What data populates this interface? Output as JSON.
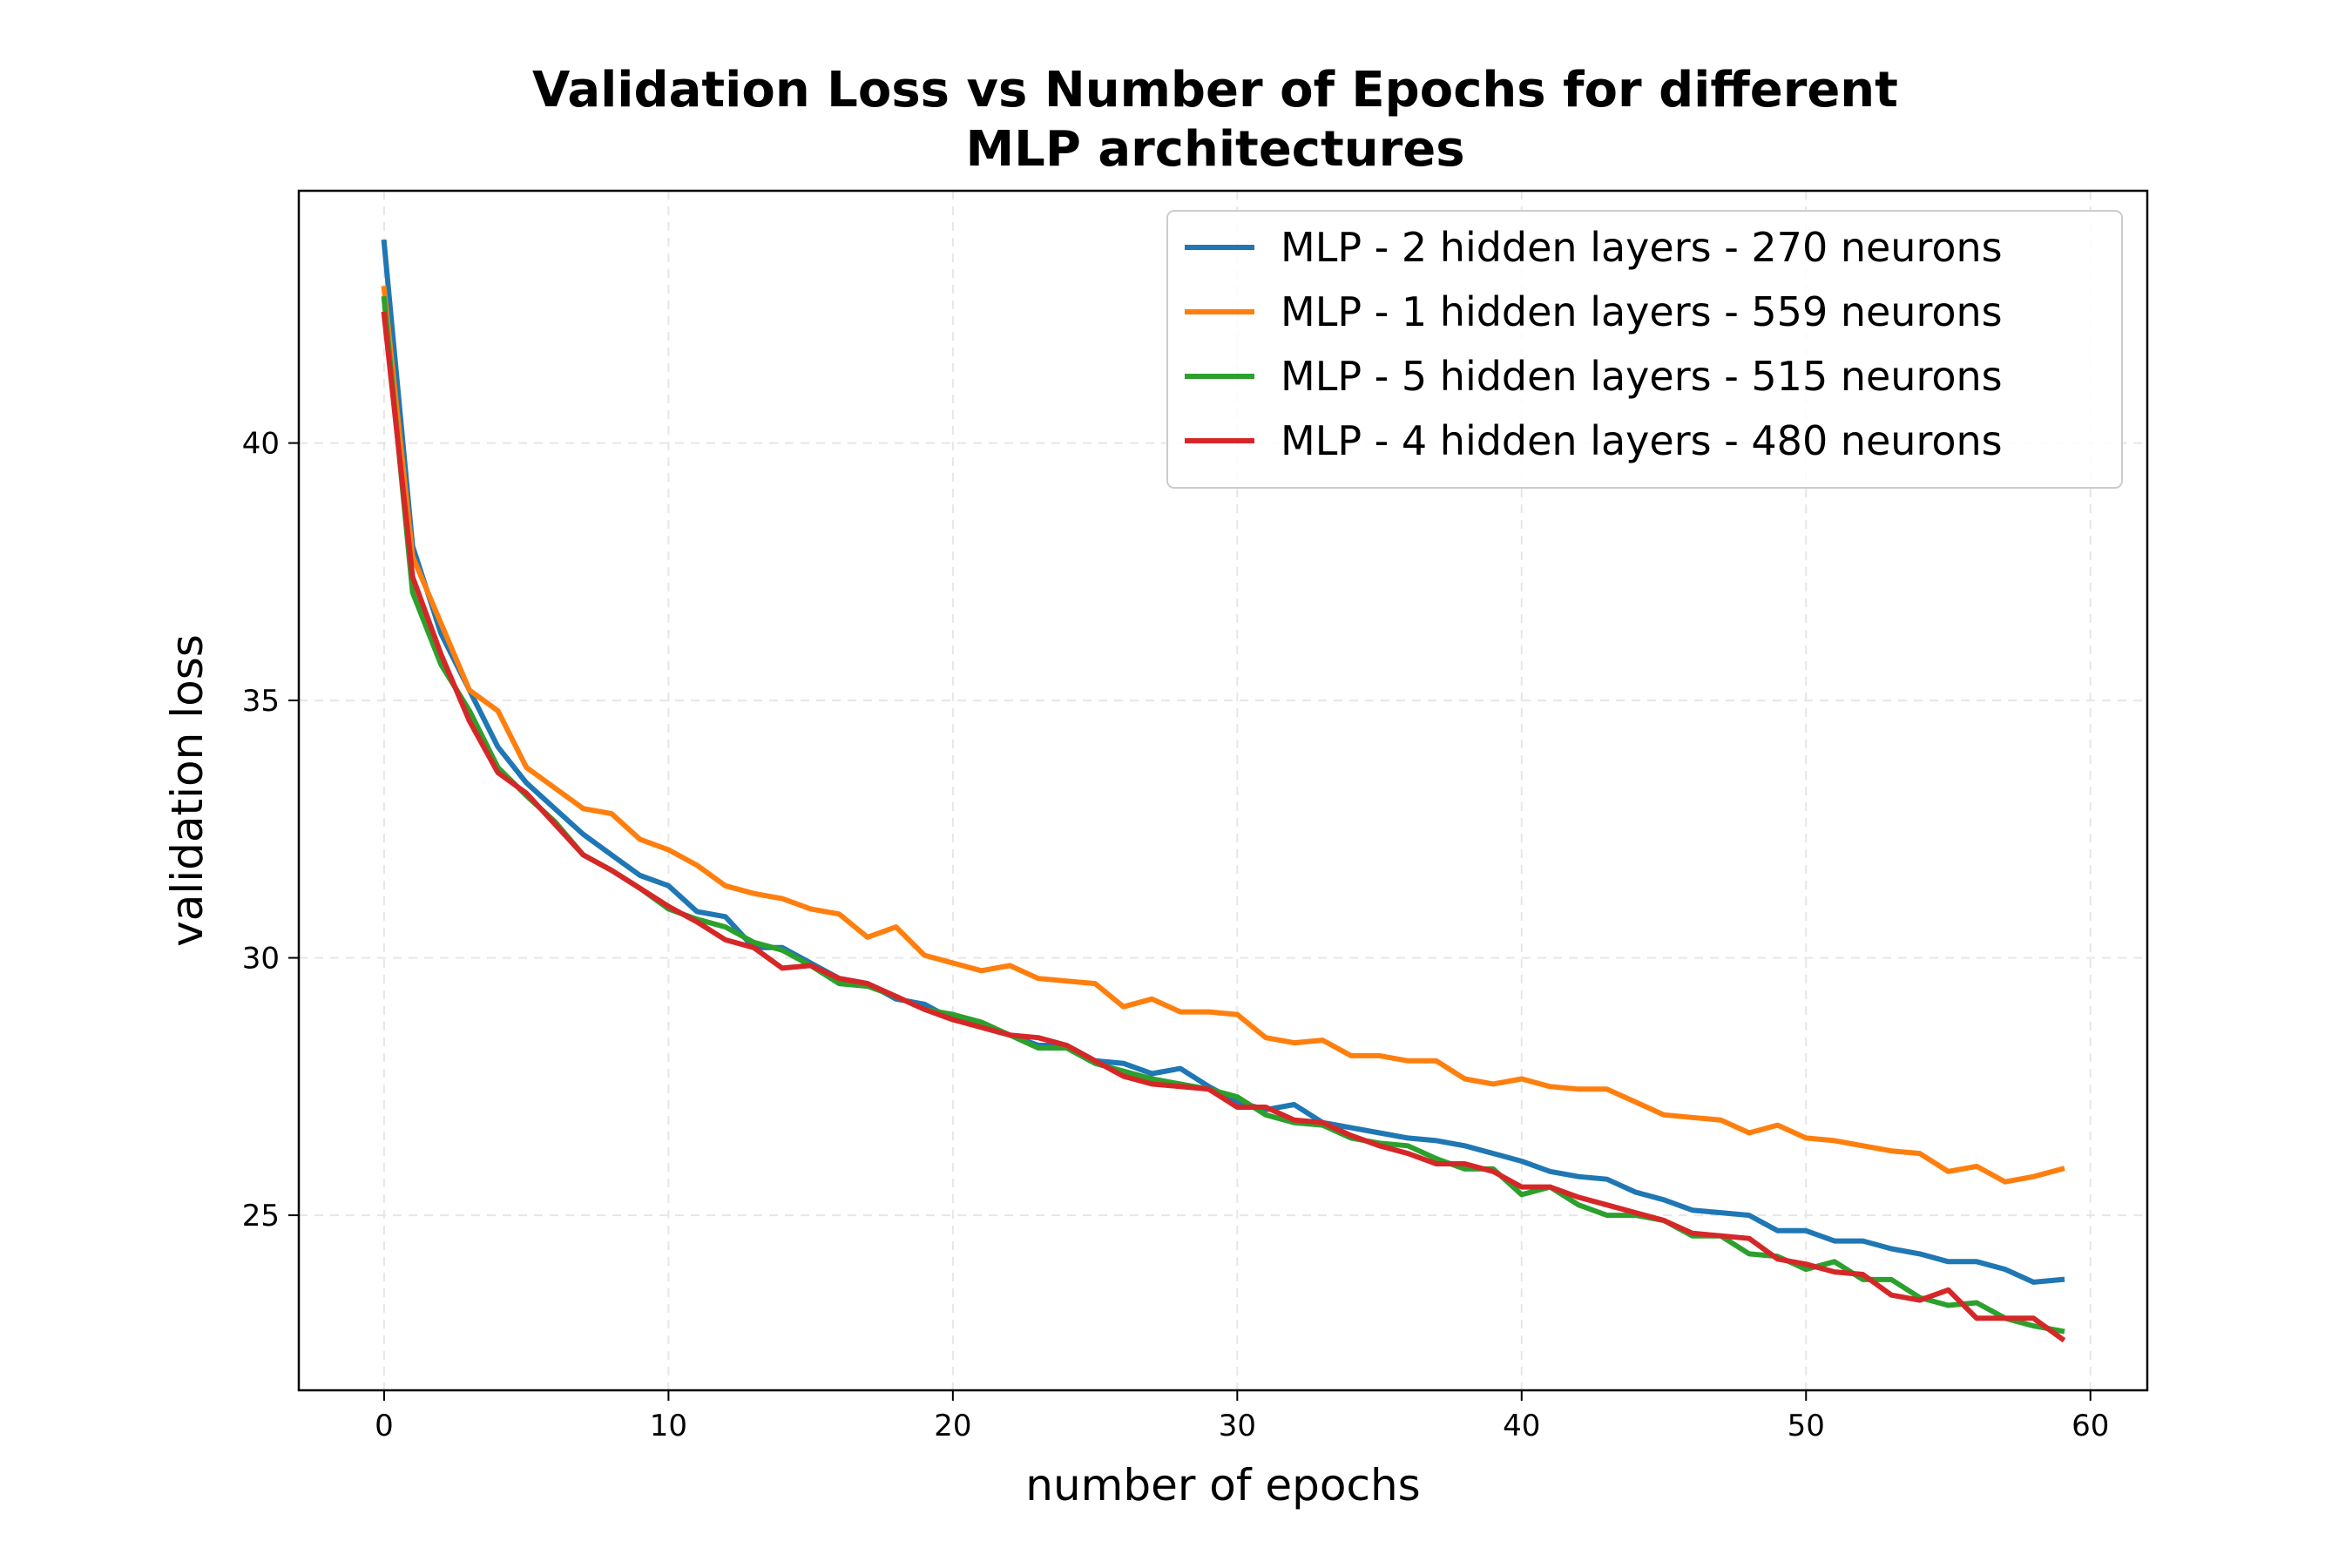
{
  "chart_data": {
    "type": "line",
    "title_lines": [
      "Validation Loss vs Number of Epochs for different",
      "MLP architectures"
    ],
    "xlabel": "number of epochs",
    "ylabel": "validation loss",
    "xlim": [
      -3,
      62
    ],
    "ylim": [
      21.6,
      44.9
    ],
    "xticks": [
      0,
      10,
      20,
      30,
      40,
      50,
      60
    ],
    "yticks": [
      25,
      30,
      35,
      40
    ],
    "grid": true,
    "legend_position": "top-right",
    "x": [
      0,
      1,
      2,
      3,
      4,
      5,
      6,
      7,
      8,
      9,
      10,
      11,
      12,
      13,
      14,
      15,
      16,
      17,
      18,
      19,
      20,
      21,
      22,
      23,
      24,
      25,
      26,
      27,
      28,
      29,
      30,
      31,
      32,
      33,
      34,
      35,
      36,
      37,
      38,
      39,
      40,
      41,
      42,
      43,
      44,
      45,
      46,
      47,
      48,
      49,
      50,
      51,
      52,
      53,
      54,
      55,
      56,
      57,
      58,
      59
    ],
    "series": [
      {
        "name": "MLP - 2 hidden layers - 270 neurons",
        "color": "#1f77b4",
        "values": [
          43.9,
          38.0,
          36.3,
          35.2,
          34.1,
          33.4,
          32.9,
          32.4,
          32.0,
          31.6,
          31.4,
          30.9,
          30.8,
          30.2,
          30.2,
          29.9,
          29.6,
          29.5,
          29.2,
          29.1,
          28.8,
          28.7,
          28.5,
          28.3,
          28.3,
          28.0,
          27.95,
          27.75,
          27.85,
          27.5,
          27.2,
          27.05,
          27.15,
          26.8,
          26.7,
          26.6,
          26.5,
          26.45,
          26.35,
          26.2,
          26.05,
          25.85,
          25.75,
          25.7,
          25.45,
          25.3,
          25.1,
          25.05,
          25.0,
          24.7,
          24.7,
          24.5,
          24.5,
          24.35,
          24.25,
          24.1,
          24.1,
          23.95,
          23.7,
          23.75
        ]
      },
      {
        "name": "MLP - 1 hidden layers - 559 neurons",
        "color": "#ff7f0e",
        "values": [
          43.0,
          37.8,
          36.5,
          35.2,
          34.8,
          33.7,
          33.3,
          32.9,
          32.8,
          32.3,
          32.1,
          31.8,
          31.4,
          31.25,
          31.15,
          30.95,
          30.85,
          30.4,
          30.6,
          30.05,
          29.9,
          29.75,
          29.85,
          29.6,
          29.55,
          29.5,
          29.05,
          29.2,
          28.95,
          28.95,
          28.9,
          28.45,
          28.35,
          28.4,
          28.1,
          28.1,
          28.0,
          28.0,
          27.65,
          27.55,
          27.65,
          27.5,
          27.45,
          27.45,
          27.2,
          26.95,
          26.9,
          26.85,
          26.6,
          26.75,
          26.5,
          26.45,
          26.35,
          26.25,
          26.2,
          25.85,
          25.95,
          25.65,
          25.75,
          25.9
        ]
      },
      {
        "name": "MLP - 5 hidden layers - 515 neurons",
        "color": "#2ca02c",
        "values": [
          42.8,
          37.1,
          35.7,
          34.8,
          33.7,
          33.15,
          32.65,
          32.0,
          31.7,
          31.35,
          30.95,
          30.75,
          30.6,
          30.3,
          30.15,
          29.85,
          29.5,
          29.45,
          29.25,
          29.0,
          28.9,
          28.75,
          28.5,
          28.25,
          28.25,
          27.95,
          27.8,
          27.65,
          27.55,
          27.45,
          27.3,
          26.95,
          26.8,
          26.75,
          26.5,
          26.4,
          26.35,
          26.1,
          25.9,
          25.9,
          25.4,
          25.55,
          25.2,
          25.0,
          25.0,
          24.9,
          24.6,
          24.6,
          24.25,
          24.2,
          23.95,
          24.1,
          23.75,
          23.75,
          23.4,
          23.25,
          23.3,
          23.0,
          22.85,
          22.75
        ]
      },
      {
        "name": "MLP - 4 hidden layers - 480 neurons",
        "color": "#d62728",
        "values": [
          42.5,
          37.4,
          35.9,
          34.6,
          33.6,
          33.2,
          32.6,
          32.0,
          31.7,
          31.35,
          31.0,
          30.7,
          30.35,
          30.2,
          29.8,
          29.85,
          29.6,
          29.5,
          29.25,
          29.0,
          28.8,
          28.65,
          28.5,
          28.45,
          28.3,
          28.0,
          27.7,
          27.55,
          27.5,
          27.45,
          27.1,
          27.1,
          26.85,
          26.8,
          26.55,
          26.35,
          26.2,
          26.0,
          26.0,
          25.85,
          25.55,
          25.55,
          25.35,
          25.2,
          25.05,
          24.9,
          24.65,
          24.6,
          24.55,
          24.15,
          24.05,
          23.9,
          23.85,
          23.45,
          23.35,
          23.55,
          23.0,
          23.0,
          23.0,
          22.6
        ]
      }
    ]
  }
}
